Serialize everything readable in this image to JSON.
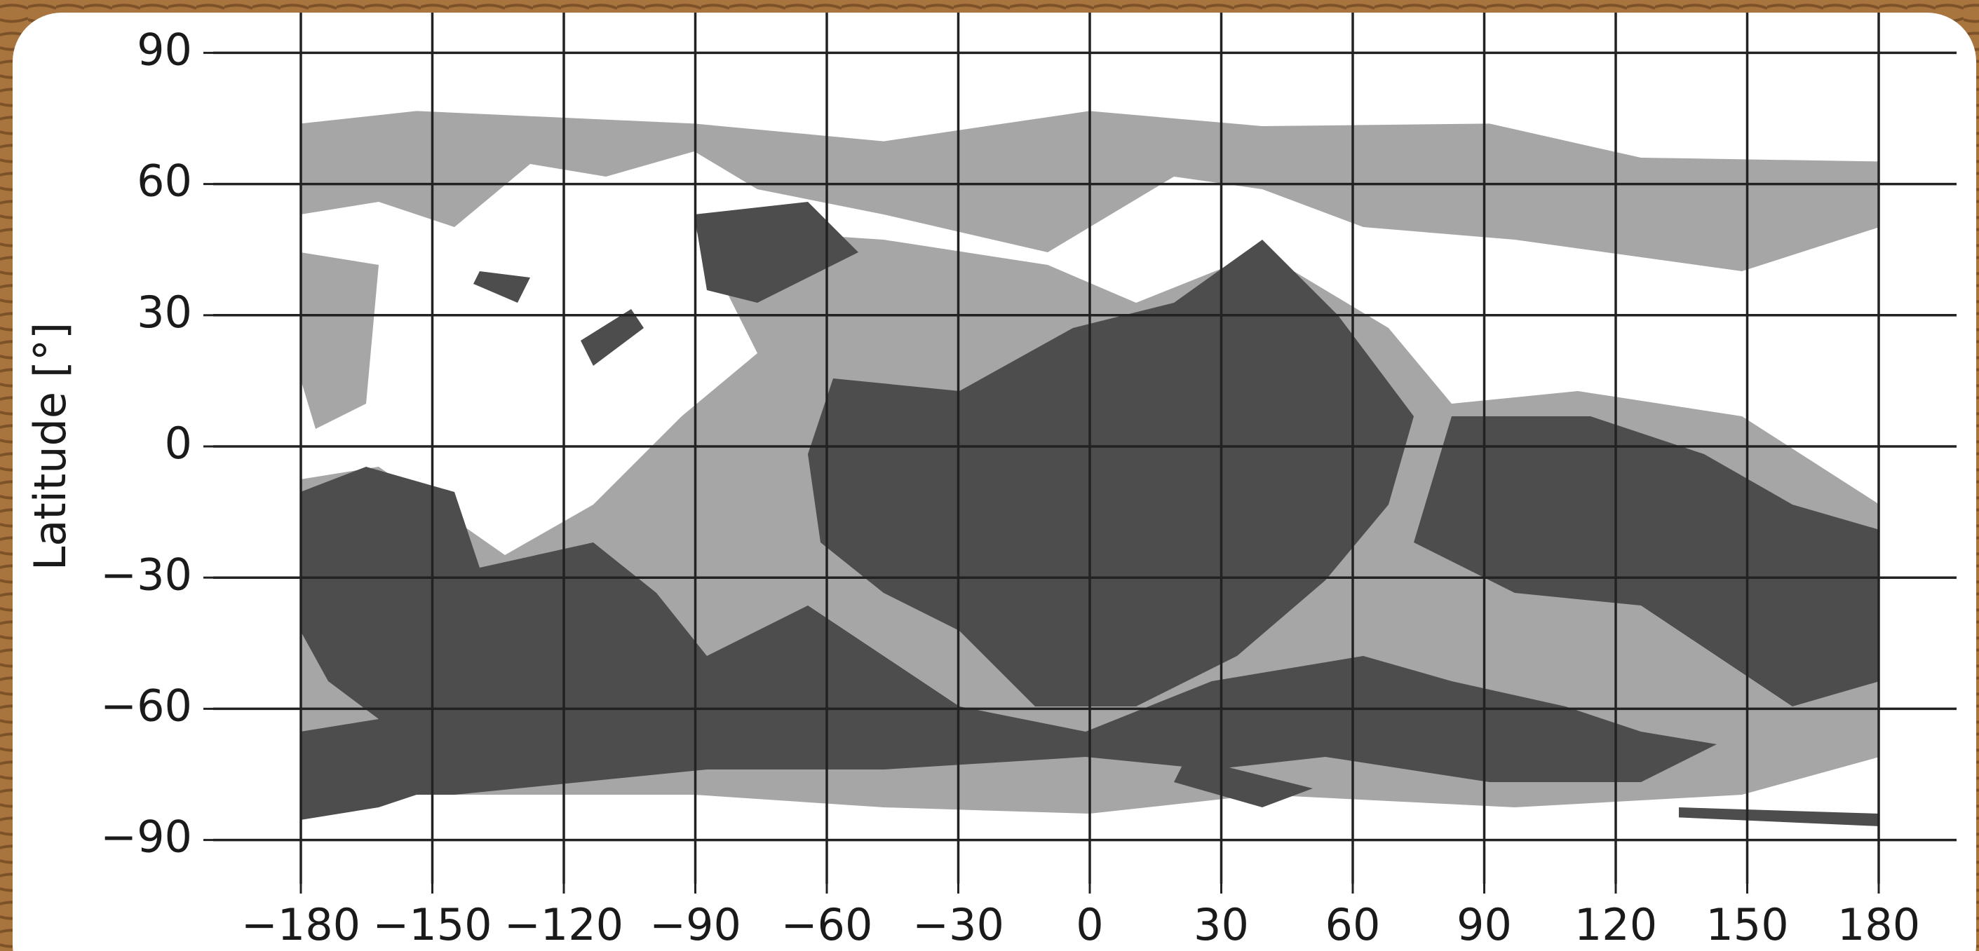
{
  "chart_data": {
    "type": "coverage-map",
    "ylabel": "Latitude [°]",
    "xlim": [
      -200,
      200
    ],
    "ylim": [
      -100,
      100
    ],
    "xticks": [
      {
        "value": -180,
        "label": "−180"
      },
      {
        "value": -150,
        "label": "−150"
      },
      {
        "value": -120,
        "label": "−120"
      },
      {
        "value": -90,
        "label": "−90"
      },
      {
        "value": -60,
        "label": "−60"
      },
      {
        "value": -30,
        "label": "−30"
      },
      0,
      30,
      60,
      90,
      120,
      150,
      180
    ],
    "yticks": [
      {
        "value": -90,
        "label": "−90"
      },
      {
        "value": -60,
        "label": "−60"
      },
      {
        "value": -30,
        "label": "−30"
      },
      0,
      30,
      60,
      90
    ],
    "grid": true,
    "grid_color": "#222222"
  }
}
